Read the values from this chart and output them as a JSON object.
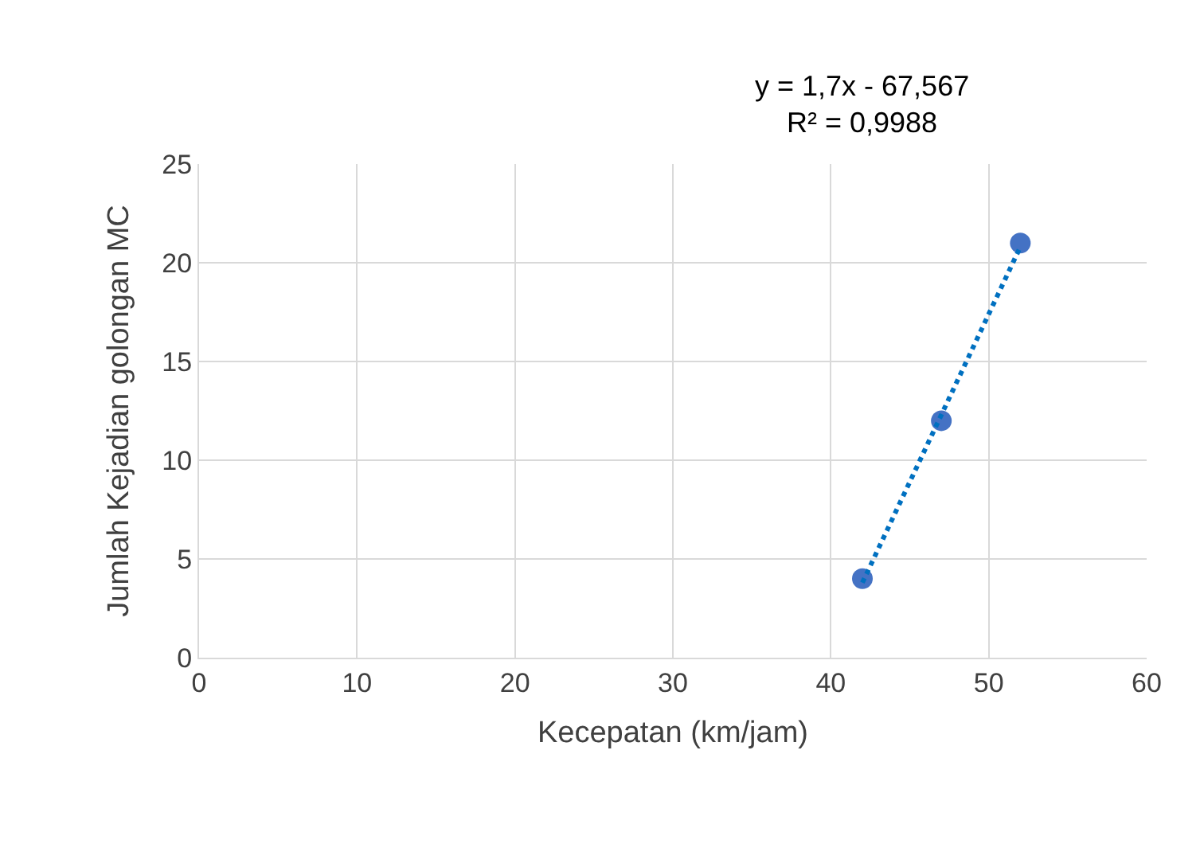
{
  "chart_data": {
    "type": "scatter",
    "xlabel": "Kecepatan (km/jam)",
    "ylabel": "Jumlah Kejadian golongan MC",
    "annotations": [
      "y = 1,7x - 67,567",
      "R² = 0,9988"
    ],
    "series": [
      {
        "x": [
          42,
          47,
          52
        ],
        "values": [
          4,
          12,
          21
        ],
        "color": "#4472c4",
        "marker": "circle"
      },
      {
        "type": "line",
        "x": [
          42,
          52
        ],
        "values": [
          3.8,
          20.8
        ],
        "color": "#0070c0",
        "line_style": "dotted",
        "marker": "none"
      }
    ],
    "xlim": [
      0,
      60
    ],
    "xticks": [
      0,
      10,
      20,
      30,
      40,
      50,
      60
    ],
    "ylim": [
      0,
      25
    ],
    "yticks": [
      0,
      5,
      10,
      15,
      20,
      25
    ],
    "grid": true,
    "legend": false
  }
}
